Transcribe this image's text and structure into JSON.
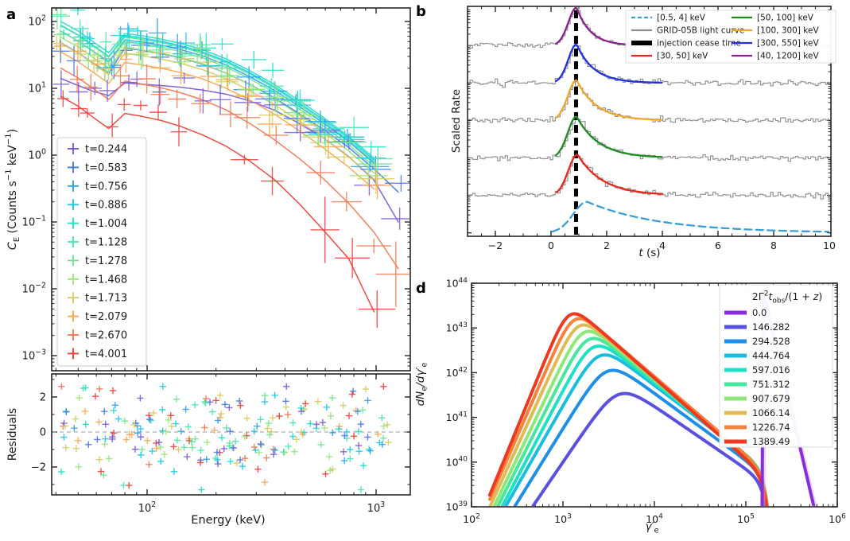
{
  "panels": {
    "a": {
      "tag": "a"
    },
    "b": {
      "tag": "b"
    },
    "d": {
      "tag": "d"
    }
  },
  "render_seeds": {
    "markers": 11,
    "residuals": 77,
    "gray": 5
  },
  "chart_data": [
    {
      "id": "a_spectra",
      "type": "line",
      "xlabel": "Energy (keV)",
      "ylabel_parts": [
        [
          "C",
          "i"
        ],
        [
          "E",
          "sub"
        ],
        [
          " (Counts s",
          ""
        ],
        [
          "−1",
          "sup"
        ],
        [
          " keV",
          ""
        ],
        [
          "−1",
          "sup"
        ],
        [
          ")",
          ""
        ]
      ],
      "xscale": "log",
      "yscale": "log",
      "xlim": [
        38,
        1400
      ],
      "ylim": [
        0.00059,
        160
      ],
      "xticks_labeled": [
        100,
        1000
      ],
      "yticks_exponents": [
        2,
        1,
        0,
        -1,
        -2,
        -3
      ],
      "energies_keV": [
        42,
        50,
        58,
        68,
        80,
        95,
        115,
        140,
        175,
        220,
        280,
        360,
        460,
        590,
        760,
        980,
        1250
      ],
      "series": [
        {
          "label": "t=0.244",
          "color": "#7a5ae0",
          "max_e": 1280,
          "values": [
            14,
            11,
            9,
            7.8,
            12,
            11.5,
            11,
            10.4,
            9.4,
            8.2,
            6.5,
            4.7,
            3.0,
            1.8,
            0.95,
            0.42,
            0.1
          ]
        },
        {
          "label": "t=0.583",
          "color": "#4678e8",
          "max_e": 1280,
          "values": [
            48,
            34,
            24,
            17,
            40,
            37,
            33,
            28.5,
            23,
            17,
            11.5,
            7.2,
            4.2,
            2.4,
            1.3,
            0.62,
            0.28
          ]
        },
        {
          "label": "t=0.756",
          "color": "#30a0f0",
          "max_e": 1120,
          "values": [
            72,
            51,
            36,
            25,
            53,
            49,
            44,
            38,
            30.5,
            22.5,
            15,
            9.3,
            5.4,
            3.0,
            1.6,
            0.75,
            0.34
          ]
        },
        {
          "label": "t=0.886",
          "color": "#20c8e8",
          "max_e": 1120,
          "values": [
            88,
            63,
            44,
            30,
            61,
            56.5,
            50.5,
            43.5,
            35,
            25.8,
            17.2,
            10.6,
            6.1,
            3.4,
            1.8,
            0.84,
            0.38
          ]
        },
        {
          "label": "t=1.004",
          "color": "#20e0c8",
          "max_e": 1120,
          "values": [
            100,
            72,
            50,
            34,
            66,
            61,
            54.5,
            47,
            37.8,
            27.8,
            18.5,
            11.4,
            6.6,
            3.65,
            1.9,
            0.9,
            0.41
          ]
        },
        {
          "label": "t=1.128",
          "color": "#48e8a8",
          "max_e": 1120,
          "values": [
            86,
            62,
            43,
            29.3,
            58.5,
            54,
            48.3,
            41.6,
            33.4,
            24.6,
            16.4,
            10.1,
            5.8,
            3.2,
            1.67,
            0.79,
            0.36
          ]
        },
        {
          "label": "t=1.278",
          "color": "#70e890",
          "max_e": 1120,
          "values": [
            71,
            51,
            35.5,
            24.2,
            50,
            46,
            41.2,
            35.5,
            28.5,
            21,
            14,
            8.6,
            4.95,
            2.73,
            1.42,
            0.67,
            0.3
          ]
        },
        {
          "label": "t=1.468",
          "color": "#98e878",
          "max_e": 1120,
          "values": [
            58,
            41.6,
            29,
            19.8,
            41,
            37.7,
            33.7,
            29,
            23.3,
            17.1,
            11.4,
            7.0,
            4.0,
            2.2,
            1.15,
            0.54,
            0.245
          ]
        },
        {
          "label": "t=1.713",
          "color": "#d8cc60",
          "max_e": 1060,
          "values": [
            47,
            33.7,
            23.5,
            16,
            33.5,
            30.8,
            27.5,
            23.7,
            19,
            14,
            9.3,
            5.7,
            3.27,
            1.8,
            0.93,
            0.44,
            0.2
          ]
        },
        {
          "label": "t=2.079",
          "color": "#f8a850",
          "max_e": 1060,
          "values": [
            35,
            25,
            17.5,
            11.9,
            24.4,
            22.4,
            20,
            17.2,
            13.8,
            10.1,
            6.7,
            4.1,
            2.34,
            1.28,
            0.66,
            0.31,
            0.14
          ]
        },
        {
          "label": "t=2.670",
          "color": "#f87850",
          "max_e": 1280,
          "values": [
            20,
            14.3,
            10,
            6.8,
            12.8,
            11.6,
            10.2,
            8.6,
            6.7,
            4.8,
            3.0,
            1.7,
            0.9,
            0.44,
            0.19,
            0.07,
            0.02
          ]
        },
        {
          "label": "t=4.001",
          "color": "#f04038",
          "max_e": 1000,
          "values": [
            7.6,
            5.4,
            3.7,
            2.5,
            4.2,
            3.8,
            3.3,
            2.7,
            2.0,
            1.38,
            0.82,
            0.43,
            0.19,
            0.075,
            0.028,
            0.0045,
            0.0015
          ]
        }
      ],
      "residual_panel": {
        "ylabel": "Residuals",
        "ylim": [
          -3.6,
          3.32
        ],
        "yticks": [
          -2,
          0,
          2
        ],
        "zero_line": 0,
        "n_points": 230,
        "y_sigma": 1.25
      }
    },
    {
      "id": "b_lightcurves",
      "type": "line",
      "xlabel_parts": [
        [
          "t",
          "i"
        ],
        [
          " (s)",
          ""
        ]
      ],
      "ylabel": "Scaled Rate",
      "xlim": [
        -3,
        10
      ],
      "xticks": [
        -2,
        0,
        2,
        4,
        6,
        8,
        10
      ],
      "injection_cease_time_s": 0.9,
      "gray_color": "#909090",
      "bands": [
        {
          "label": "[40, 1200] keV",
          "color": "#8c2090",
          "baseline": 0.83,
          "amp": 0.165,
          "t_peak": 0.92,
          "rise": 0.3,
          "decay": 0.5,
          "t_start": 0.18,
          "t_end": 4.0,
          "dashed": false,
          "gray_histogram": true
        },
        {
          "label": "[300, 550] keV",
          "color": "#2230dd",
          "baseline": 0.667,
          "amp": 0.168,
          "t_peak": 0.92,
          "rise": 0.3,
          "decay": 0.62,
          "t_start": 0.18,
          "t_end": 4.0,
          "dashed": false,
          "gray_histogram": true
        },
        {
          "label": "[100, 300] keV",
          "color": "#f0a72e",
          "baseline": 0.504,
          "amp": 0.175,
          "t_peak": 0.92,
          "rise": 0.32,
          "decay": 0.72,
          "t_start": 0.18,
          "t_end": 4.0,
          "dashed": false,
          "gray_histogram": true
        },
        {
          "label": "[50, 100] keV",
          "color": "#1e8c1e",
          "baseline": 0.341,
          "amp": 0.18,
          "t_peak": 0.92,
          "rise": 0.32,
          "decay": 0.8,
          "t_start": 0.18,
          "t_end": 4.0,
          "dashed": false,
          "gray_histogram": true
        },
        {
          "label": "[30, 50] keV",
          "color": "#e8281e",
          "baseline": 0.178,
          "amp": 0.178,
          "t_peak": 0.95,
          "rise": 0.33,
          "decay": 0.9,
          "t_start": 0.2,
          "t_end": 4.0,
          "dashed": false,
          "gray_histogram": true
        },
        {
          "label": "[0.5, 4] keV",
          "color": "#3a9fd9",
          "baseline": 0.015,
          "amp": 0.135,
          "t_peak": 1.3,
          "rise": 0.5,
          "decay": 2.6,
          "t_start": 0.05,
          "t_end": 10,
          "dashed": true,
          "gray_histogram": false
        }
      ],
      "legend": {
        "col1": [
          {
            "label": "[0.5, 4] keV",
            "color": "#3a9fd9",
            "style": "dashed"
          },
          {
            "label": "GRID-05B light curve",
            "color": "#909090",
            "style": "solid"
          },
          {
            "label": "injection cease time",
            "color": "#000000",
            "style": "thick"
          },
          {
            "label": "[30, 50] keV",
            "color": "#e8281e",
            "style": "solid"
          }
        ],
        "col2": [
          {
            "label": "[50, 100] keV",
            "color": "#1e8c1e",
            "style": "solid"
          },
          {
            "label": "[100, 300] keV",
            "color": "#f0a72e",
            "style": "solid"
          },
          {
            "label": "[300, 550] keV",
            "color": "#2230dd",
            "style": "solid"
          },
          {
            "label": "[40, 1200] keV",
            "color": "#8c2090",
            "style": "solid"
          }
        ]
      }
    },
    {
      "id": "d_electron_spectra",
      "type": "line",
      "xlabel_parts": [
        [
          "γ′",
          "i"
        ],
        [
          "e",
          "sub"
        ]
      ],
      "ylabel_parts": [
        [
          "dN",
          "i"
        ],
        [
          "e",
          "sub"
        ],
        [
          "/dγ′",
          "i"
        ],
        [
          "e",
          "sub"
        ]
      ],
      "xscale": "log",
      "yscale": "log",
      "xlim": [
        100,
        1000000
      ],
      "ylim": [
        1e+39,
        1e+44
      ],
      "xticks_exponents": [
        2,
        3,
        4,
        5,
        6
      ],
      "yticks_exponents": [
        39,
        40,
        41,
        42,
        43,
        44
      ],
      "legend_title_parts": [
        [
          "2Γ",
          ""
        ],
        [
          "2",
          "sup"
        ],
        [
          "t",
          "i"
        ],
        [
          "obs",
          "sub"
        ],
        [
          "/(1 + ",
          ""
        ],
        [
          "z",
          "i"
        ],
        [
          ")",
          ""
        ]
      ],
      "cutoff_x": 160000,
      "curves": [
        {
          "label": "0.0",
          "color": "#8b2be2",
          "type": "injection",
          "spike_x": 160000,
          "spike_top": 7e+43,
          "tail_end_x": 580000
        },
        {
          "label": "146.282",
          "color": "#5a50e0",
          "gamma_peak": 4000,
          "peak_height": 3.2e+41,
          "rise_index": 3.0,
          "decay_index": 1.4
        },
        {
          "label": "294.528",
          "color": "#1e8fe8",
          "gamma_peak": 3000,
          "peak_height": 1.05e+42,
          "rise_index": 3.3,
          "decay_index": 1.5
        },
        {
          "label": "444.764",
          "color": "#18bede",
          "gamma_peak": 2450,
          "peak_height": 2.3e+42,
          "rise_index": 3.6,
          "decay_index": 1.55
        },
        {
          "label": "597.016",
          "color": "#1ee0c4",
          "gamma_peak": 2100,
          "peak_height": 3.6e+42,
          "rise_index": 3.9,
          "decay_index": 1.6
        },
        {
          "label": "751.312",
          "color": "#47e89c",
          "gamma_peak": 1850,
          "peak_height": 5.3e+42,
          "rise_index": 4.1,
          "decay_index": 1.65
        },
        {
          "label": "907.679",
          "color": "#8ce878",
          "gamma_peak": 1650,
          "peak_height": 7.6e+42,
          "rise_index": 4.3,
          "decay_index": 1.7
        },
        {
          "label": "1066.14",
          "color": "#dfba55",
          "gamma_peak": 1450,
          "peak_height": 1.05e+43,
          "rise_index": 4.5,
          "decay_index": 1.72
        },
        {
          "label": "1226.74",
          "color": "#f8823c",
          "gamma_peak": 1300,
          "peak_height": 1.45e+43,
          "rise_index": 4.7,
          "decay_index": 1.75
        },
        {
          "label": "1389.49",
          "color": "#ee3820",
          "gamma_peak": 1150,
          "peak_height": 1.85e+43,
          "rise_index": 5.0,
          "decay_index": 1.8
        }
      ]
    }
  ]
}
